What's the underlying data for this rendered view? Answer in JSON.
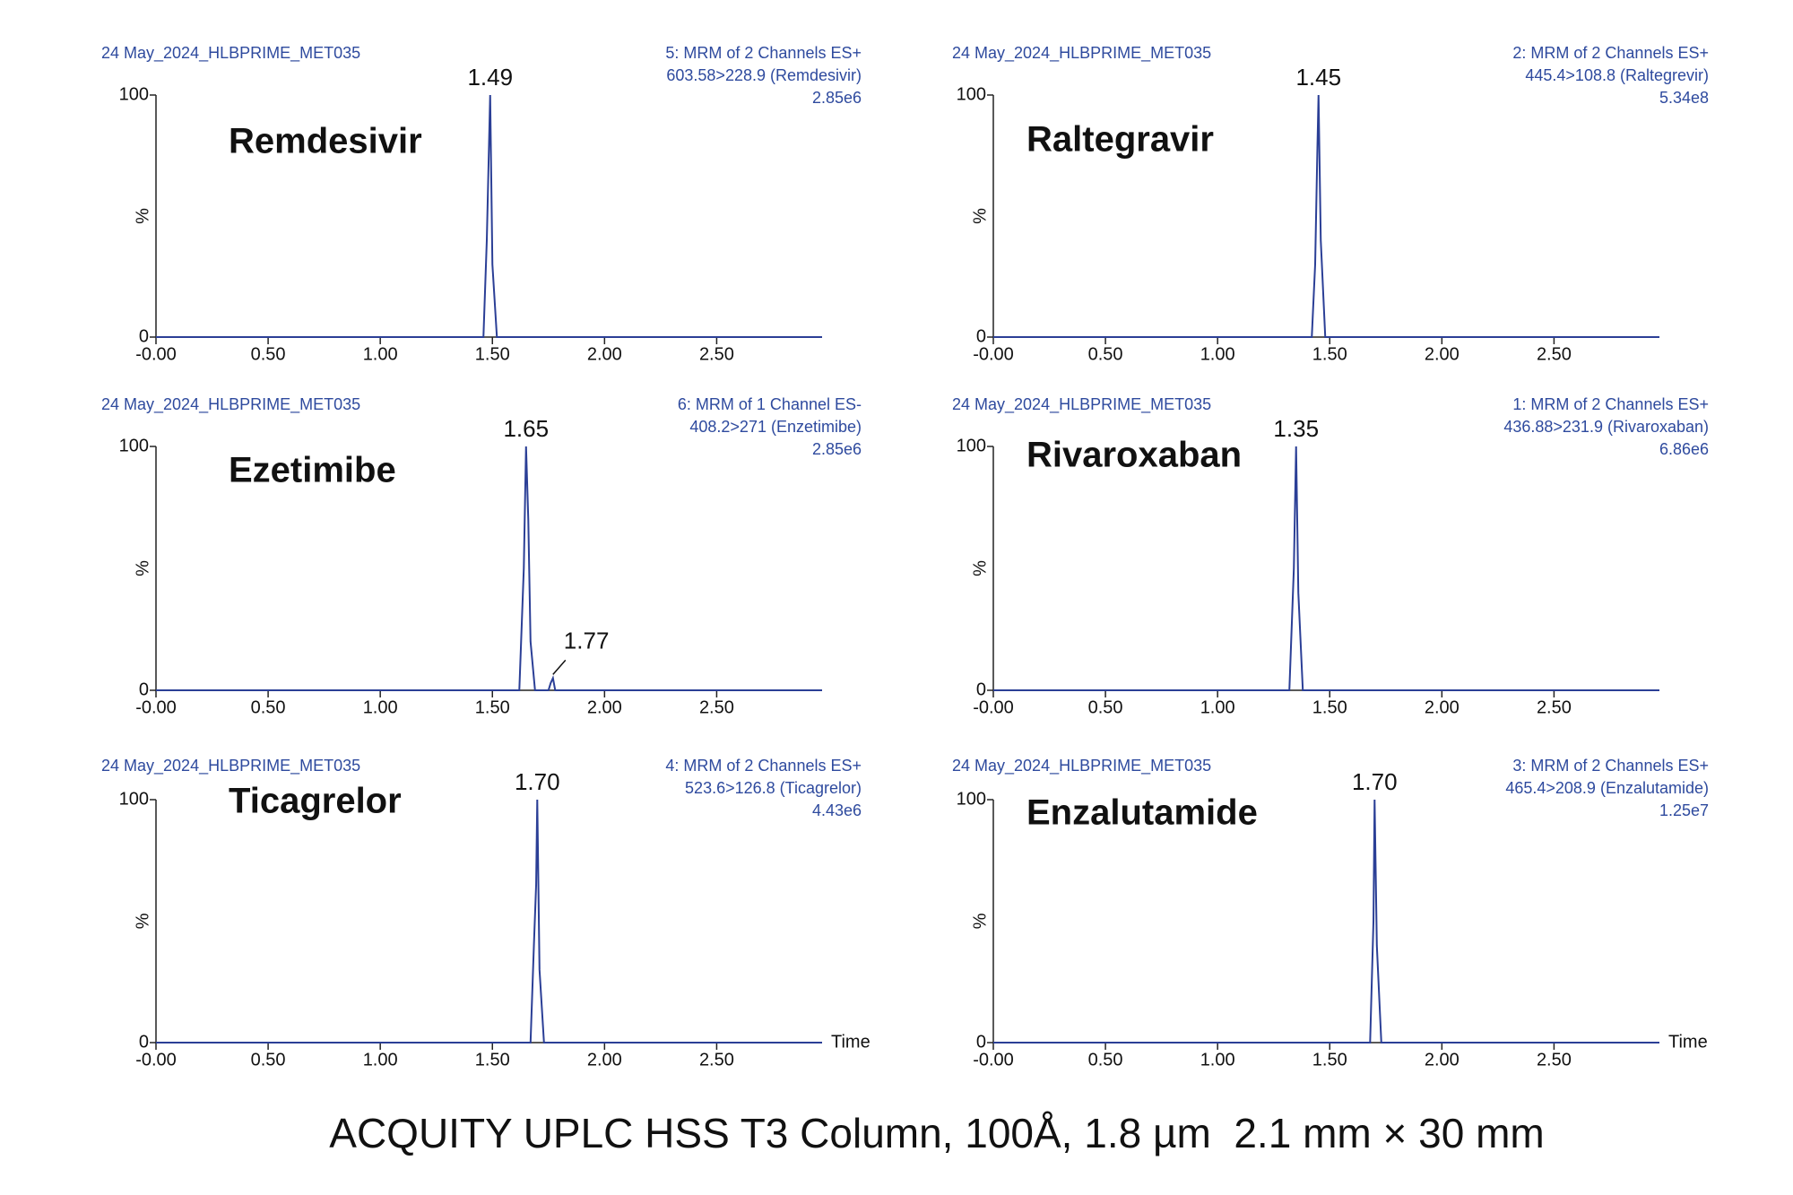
{
  "chart_data": [
    {
      "type": "line",
      "title": "Remdesivir",
      "header_left": "24 May_2024_HLBPRIME_MET035",
      "header_right": [
        "5: MRM of 2 Channels ES+",
        "603.58>228.9 (Remdesivir)",
        "2.85e6"
      ],
      "ylabel": "%",
      "x": [
        0,
        1.46,
        1.475,
        1.49,
        1.5,
        1.52,
        2.97
      ],
      "values": [
        0,
        0,
        40,
        100,
        30,
        0,
        0
      ],
      "annotations": [
        {
          "text": "1.49",
          "x": 1.49,
          "y": 100
        }
      ],
      "xlim": [
        0,
        2.97
      ],
      "xticks": [
        {
          "value": 0,
          "label": "-0.00"
        },
        {
          "value": 0.5,
          "label": "0.50"
        },
        {
          "value": 1,
          "label": "1.00"
        },
        {
          "value": 1.5,
          "label": "1.50"
        },
        {
          "value": 2,
          "label": "2.00"
        },
        {
          "value": 2.5,
          "label": "2.50"
        }
      ],
      "ylim": [
        0,
        100
      ],
      "yticks": [
        0,
        100
      ],
      "color": "#2b3f96"
    },
    {
      "type": "line",
      "title": "Raltegravir",
      "header_left": "24 May_2024_HLBPRIME_MET035",
      "header_right": [
        "2: MRM of 2 Channels ES+",
        "445.4>108.8 (Raltegrevir)",
        "5.34e8"
      ],
      "ylabel": "%",
      "x": [
        0,
        1.42,
        1.435,
        1.445,
        1.45,
        1.46,
        1.48,
        2.97
      ],
      "values": [
        0,
        0,
        30,
        78,
        100,
        40,
        0,
        0
      ],
      "annotations": [
        {
          "text": "1.45",
          "x": 1.45,
          "y": 100
        }
      ],
      "xlim": [
        0,
        2.97
      ],
      "xticks": [
        {
          "value": 0,
          "label": "-0.00"
        },
        {
          "value": 0.5,
          "label": "0.50"
        },
        {
          "value": 1,
          "label": "1.00"
        },
        {
          "value": 1.5,
          "label": "1.50"
        },
        {
          "value": 2,
          "label": "2.00"
        },
        {
          "value": 2.5,
          "label": "2.50"
        }
      ],
      "ylim": [
        0,
        100
      ],
      "yticks": [
        0,
        100
      ],
      "color": "#2b3f96"
    },
    {
      "type": "line",
      "title": "Ezetimibe",
      "header_left": "24 May_2024_HLBPRIME_MET035",
      "header_right": [
        "6: MRM of 1 Channel ES-",
        "408.2>271 (Enzetimibe)",
        "2.85e6"
      ],
      "ylabel": "%",
      "x": [
        0,
        1.62,
        1.64,
        1.65,
        1.66,
        1.67,
        1.69,
        1.75,
        1.76,
        1.77,
        1.78,
        2.97
      ],
      "values": [
        0,
        0,
        50,
        100,
        70,
        20,
        0,
        0,
        3,
        5,
        0,
        0
      ],
      "annotations": [
        {
          "text": "1.65",
          "x": 1.65,
          "y": 100
        },
        {
          "text": "1.77",
          "x": 1.77,
          "y": 5
        }
      ],
      "xlim": [
        0,
        2.97
      ],
      "xticks": [
        {
          "value": 0,
          "label": "-0.00"
        },
        {
          "value": 0.5,
          "label": "0.50"
        },
        {
          "value": 1,
          "label": "1.00"
        },
        {
          "value": 1.5,
          "label": "1.50"
        },
        {
          "value": 2,
          "label": "2.00"
        },
        {
          "value": 2.5,
          "label": "2.50"
        }
      ],
      "ylim": [
        0,
        100
      ],
      "yticks": [
        0,
        100
      ],
      "color": "#2b3f96"
    },
    {
      "type": "line",
      "title": "Rivaroxaban",
      "header_left": "24 May_2024_HLBPRIME_MET035",
      "header_right": [
        "1: MRM of 2 Channels ES+",
        "436.88>231.9 (Rivaroxaban)",
        "6.86e6"
      ],
      "ylabel": "%",
      "x": [
        0,
        1.32,
        1.34,
        1.35,
        1.36,
        1.38,
        2.97
      ],
      "values": [
        0,
        0,
        50,
        100,
        40,
        0,
        0
      ],
      "annotations": [
        {
          "text": "1.35",
          "x": 1.35,
          "y": 100
        }
      ],
      "xlim": [
        0,
        2.97
      ],
      "xticks": [
        {
          "value": 0,
          "label": "-0.00"
        },
        {
          "value": 0.5,
          "label": "0.50"
        },
        {
          "value": 1,
          "label": "1.00"
        },
        {
          "value": 1.5,
          "label": "1.50"
        },
        {
          "value": 2,
          "label": "2.00"
        },
        {
          "value": 2.5,
          "label": "2.50"
        }
      ],
      "ylim": [
        0,
        100
      ],
      "yticks": [
        0,
        100
      ],
      "color": "#2b3f96"
    },
    {
      "type": "line",
      "title": "Ticagrelor",
      "header_left": "24 May_2024_HLBPRIME_MET035",
      "header_right": [
        "4: MRM of 2 Channels ES+",
        "523.6>126.8 (Ticagrelor)",
        "4.43e6"
      ],
      "ylabel": "%",
      "xlabel": "Time",
      "x": [
        0,
        1.67,
        1.685,
        1.695,
        1.7,
        1.71,
        1.73,
        2.97
      ],
      "values": [
        0,
        0,
        40,
        65,
        100,
        30,
        0,
        0
      ],
      "annotations": [
        {
          "text": "1.70",
          "x": 1.7,
          "y": 100
        }
      ],
      "xlim": [
        0,
        2.97
      ],
      "xticks": [
        {
          "value": 0,
          "label": "-0.00"
        },
        {
          "value": 0.5,
          "label": "0.50"
        },
        {
          "value": 1,
          "label": "1.00"
        },
        {
          "value": 1.5,
          "label": "1.50"
        },
        {
          "value": 2,
          "label": "2.00"
        },
        {
          "value": 2.5,
          "label": "2.50"
        }
      ],
      "ylim": [
        0,
        100
      ],
      "yticks": [
        0,
        100
      ],
      "color": "#2b3f96"
    },
    {
      "type": "line",
      "title": "Enzalutamide",
      "header_left": "24 May_2024_HLBPRIME_MET035",
      "header_right": [
        "3: MRM of 2 Channels ES+",
        "465.4>208.9 (Enzalutamide)",
        "1.25e7"
      ],
      "ylabel": "%",
      "xlabel": "Time",
      "x": [
        0,
        1.68,
        1.695,
        1.7,
        1.71,
        1.73,
        2.97
      ],
      "values": [
        0,
        0,
        50,
        100,
        40,
        0,
        0
      ],
      "annotations": [
        {
          "text": "1.70",
          "x": 1.7,
          "y": 100
        }
      ],
      "xlim": [
        0,
        2.97
      ],
      "xticks": [
        {
          "value": 0,
          "label": "-0.00"
        },
        {
          "value": 0.5,
          "label": "0.50"
        },
        {
          "value": 1,
          "label": "1.00"
        },
        {
          "value": 1.5,
          "label": "1.50"
        },
        {
          "value": 2,
          "label": "2.00"
        },
        {
          "value": 2.5,
          "label": "2.50"
        }
      ],
      "ylim": [
        0,
        100
      ],
      "yticks": [
        0,
        100
      ],
      "color": "#2b3f96"
    }
  ],
  "caption": "ACQUITY UPLC HSS T3 Column, 100Å, 1.8 µm  2.1 mm × 30 mm"
}
